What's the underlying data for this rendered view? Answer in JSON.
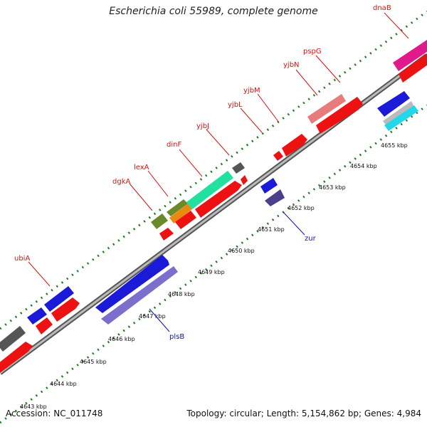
{
  "title": "Escherichia coli 55989, complete genome",
  "footer": {
    "accession": "Accession: NC_011748",
    "summary": "Topology: circular; Length: 5,154,862 bp; Genes: 4,984"
  },
  "colors": {
    "backbone": "#888888",
    "tick": "#1f7a1f",
    "forward_label": "#dd1111",
    "reverse_label": "#1111cc",
    "cds": "#ee1111",
    "blue": "#1a1ad8",
    "lavender": "#7a6fcc",
    "teal": "#22e0a0",
    "olive": "#6a8a2a",
    "orange": "#e88a10",
    "gray": "#555555",
    "pink": "#e87c7c",
    "magenta": "#e01a8a",
    "cyan": "#22d8e8",
    "silver": "#bbbbbb"
  },
  "ticks": [
    "4643 kbp",
    "4644 kbp",
    "4645 kbp",
    "4646 kbp",
    "4647 kbp",
    "4648 kbp",
    "4649 kbp",
    "4650 kbp",
    "4651 kbp",
    "4652 kbp",
    "4653 kbp",
    "4654 kbp",
    "4655 kbp"
  ],
  "gene_labels": [
    {
      "text": "ubiA",
      "strand": "forward"
    },
    {
      "text": "dgkA",
      "strand": "forward"
    },
    {
      "text": "lexA",
      "strand": "forward"
    },
    {
      "text": "dinF",
      "strand": "forward"
    },
    {
      "text": "yjbJ",
      "strand": "forward"
    },
    {
      "text": "yjbL",
      "strand": "forward"
    },
    {
      "text": "yjbM",
      "strand": "forward"
    },
    {
      "text": "yjbN",
      "strand": "forward"
    },
    {
      "text": "pspG",
      "strand": "forward"
    },
    {
      "text": "dnaB",
      "strand": "forward"
    },
    {
      "text": "plsB",
      "strand": "reverse"
    },
    {
      "text": "zur",
      "strand": "reverse"
    }
  ]
}
